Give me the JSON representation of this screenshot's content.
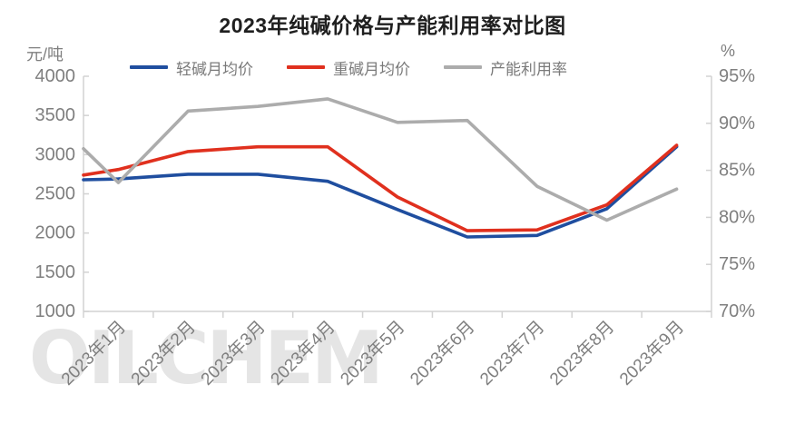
{
  "chart_data": {
    "type": "line",
    "title": "2023年纯碱价格与产能利用率对比图",
    "watermark": "OILCHEM",
    "legend_position": "top",
    "grid": false,
    "left_axis": {
      "unit": "元/吨",
      "min": 1000,
      "max": 4000,
      "step": 500,
      "tick_labels": [
        "4000",
        "3500",
        "3000",
        "2500",
        "2000",
        "1500",
        "1000"
      ]
    },
    "right_axis": {
      "unit": "%",
      "min": 70,
      "max": 95,
      "step": 5,
      "tick_labels": [
        "95%",
        "90%",
        "85%",
        "80%",
        "75%",
        "70%"
      ]
    },
    "categories": [
      "2023年1月",
      "2023年2月",
      "2023年3月",
      "2023年4月",
      "2023年5月",
      "2023年6月",
      "2023年7月",
      "2023年8月",
      "2023年9月"
    ],
    "series": [
      {
        "name": "轻碱月均价",
        "axis": "left",
        "color": "#1F4E9F",
        "edge_value_at_left_axis": 2680,
        "values": [
          2690,
          2750,
          2750,
          2660,
          2300,
          1950,
          1970,
          2310,
          3100
        ]
      },
      {
        "name": "重碱月均价",
        "axis": "left",
        "color": "#E0301E",
        "edge_value_at_left_axis": 2740,
        "values": [
          2810,
          3040,
          3100,
          3100,
          2460,
          2030,
          2040,
          2360,
          3120
        ]
      },
      {
        "name": "产能利用率",
        "axis": "right",
        "color": "#ACACAC",
        "edge_value_at_left_axis": 87.3,
        "values": [
          83.7,
          91.3,
          91.8,
          92.6,
          90.1,
          90.3,
          83.3,
          79.7,
          83.0
        ]
      }
    ]
  }
}
